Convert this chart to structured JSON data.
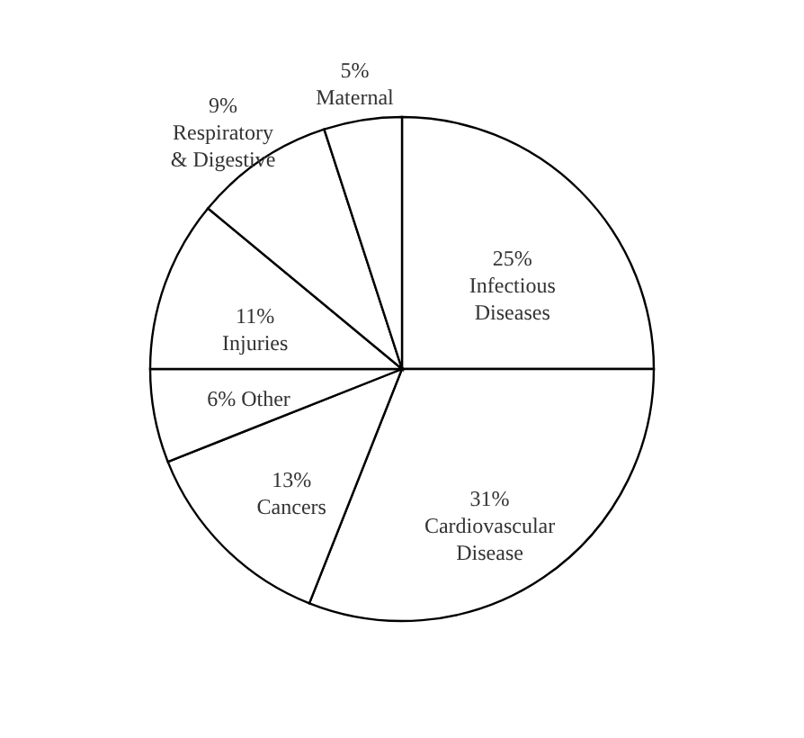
{
  "chart_data": {
    "type": "pie",
    "categories": [
      "Infectious Diseases",
      "Cardiovascular Disease",
      "Cancers",
      "Other",
      "Injuries",
      "Respiratory & Digestive",
      "Maternal"
    ],
    "values": [
      25,
      31,
      13,
      6,
      11,
      9,
      5
    ],
    "value_labels": [
      "25%",
      "31%",
      "13%",
      "6%",
      "11%",
      "9%",
      "5%"
    ],
    "colors": [
      "#ffffff",
      "#ffffff",
      "#ffffff",
      "#ffffff",
      "#ffffff",
      "#ffffff",
      "#ffffff"
    ]
  }
}
